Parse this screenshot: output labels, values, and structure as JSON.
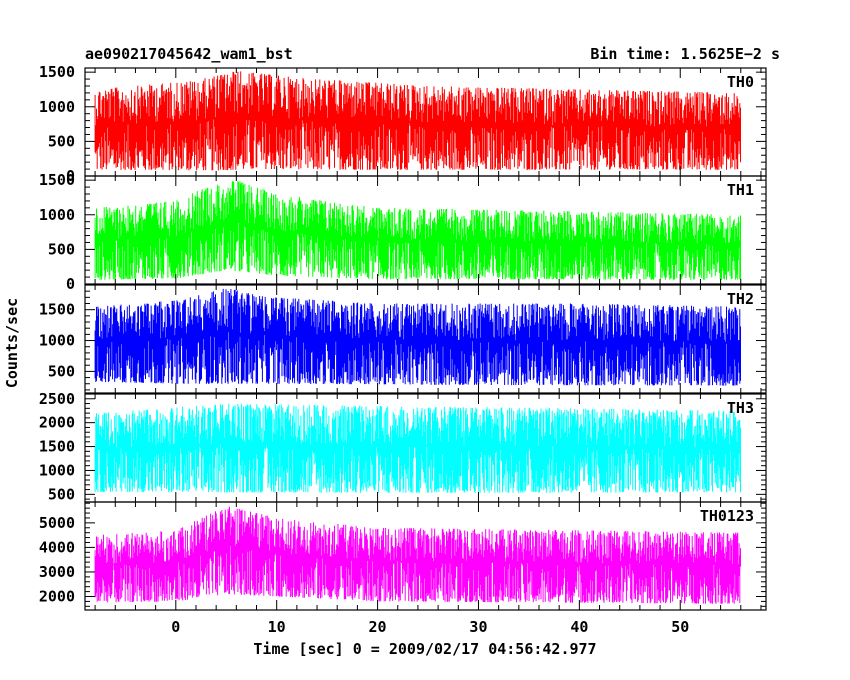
{
  "header": {
    "title": "ae090217045642_wam1_bst",
    "bin_time": "Bin time: 1.5625E−2 s"
  },
  "chart_data": {
    "type": "line",
    "xlabel": "Time [sec] 0 = 2009/02/17 04:56:42.977",
    "ylabel": "Counts/sec",
    "xlim": [
      -9,
      58.5
    ],
    "x_ticks": [
      0,
      10,
      20,
      30,
      40,
      50
    ],
    "x_tick_labels": [
      "0",
      "10",
      "20",
      "30",
      "40",
      "50"
    ],
    "x_range": [
      -8,
      56
    ],
    "bin_time_s": 0.015625,
    "grid": false,
    "panels": [
      {
        "name": "TH0",
        "color": "#ff0000",
        "ylim": [
          0,
          1560
        ],
        "y_ticks": [
          0,
          500,
          1000,
          1500
        ],
        "y_tick_labels": [
          "0",
          "500",
          "1000",
          "1500"
        ],
        "profile": {
          "min_level": [
            [
              -8,
              90
            ],
            [
              4,
              80
            ],
            [
              8,
              100
            ],
            [
              20,
              90
            ],
            [
              56,
              90
            ]
          ],
          "max_level": [
            [
              -8,
              1250
            ],
            [
              2,
              1380
            ],
            [
              6,
              1520
            ],
            [
              12,
              1420
            ],
            [
              25,
              1300
            ],
            [
              40,
              1250
            ],
            [
              56,
              1200
            ]
          ]
        }
      },
      {
        "name": "TH1",
        "color": "#00ff00",
        "ylim": [
          0,
          1560
        ],
        "y_ticks": [
          0,
          500,
          1000,
          1500
        ],
        "y_tick_labels": [
          "0",
          "500",
          "1000",
          "1500"
        ],
        "profile": {
          "min_level": [
            [
              -8,
              60
            ],
            [
              0,
              80
            ],
            [
              5,
              200
            ],
            [
              10,
              120
            ],
            [
              20,
              70
            ],
            [
              56,
              60
            ]
          ],
          "max_level": [
            [
              -8,
              1100
            ],
            [
              0,
              1200
            ],
            [
              3,
              1400
            ],
            [
              6,
              1500
            ],
            [
              10,
              1300
            ],
            [
              20,
              1100
            ],
            [
              40,
              1050
            ],
            [
              56,
              1000
            ]
          ]
        }
      },
      {
        "name": "TH2",
        "color": "#0000ff",
        "ylim": [
          150,
          1900
        ],
        "y_ticks": [
          500,
          1000,
          1500
        ],
        "y_tick_labels": [
          "500",
          "1000",
          "1500"
        ],
        "profile": {
          "min_level": [
            [
              -8,
              330
            ],
            [
              0,
              300
            ],
            [
              5,
              300
            ],
            [
              10,
              300
            ],
            [
              30,
              280
            ],
            [
              56,
              270
            ]
          ],
          "max_level": [
            [
              -8,
              1550
            ],
            [
              0,
              1650
            ],
            [
              5,
              1850
            ],
            [
              10,
              1700
            ],
            [
              20,
              1600
            ],
            [
              40,
              1600
            ],
            [
              56,
              1550
            ]
          ]
        }
      },
      {
        "name": "TH3",
        "color": "#00ffff",
        "ylim": [
          340,
          2600
        ],
        "y_ticks": [
          500,
          1000,
          1500,
          2000,
          2500
        ],
        "y_tick_labels": [
          "500",
          "1000",
          "1500",
          "2000",
          "2500"
        ],
        "profile": {
          "min_level": [
            [
              -8,
              550
            ],
            [
              20,
              530
            ],
            [
              56,
              540
            ]
          ],
          "max_level": [
            [
              -8,
              2200
            ],
            [
              5,
              2400
            ],
            [
              20,
              2350
            ],
            [
              40,
              2300
            ],
            [
              56,
              2250
            ]
          ]
        }
      },
      {
        "name": "TH0123",
        "color": "#ff00ff",
        "ylim": [
          1450,
          5850
        ],
        "y_ticks": [
          2000,
          3000,
          4000,
          5000
        ],
        "y_tick_labels": [
          "2000",
          "3000",
          "4000",
          "5000"
        ],
        "profile": {
          "min_level": [
            [
              -8,
              1750
            ],
            [
              0,
              1800
            ],
            [
              5,
              2100
            ],
            [
              10,
              2000
            ],
            [
              20,
              1800
            ],
            [
              56,
              1700
            ]
          ],
          "max_level": [
            [
              -8,
              4500
            ],
            [
              0,
              4700
            ],
            [
              5,
              5700
            ],
            [
              10,
              5200
            ],
            [
              20,
              4800
            ],
            [
              40,
              4700
            ],
            [
              56,
              4600
            ]
          ]
        }
      }
    ]
  }
}
